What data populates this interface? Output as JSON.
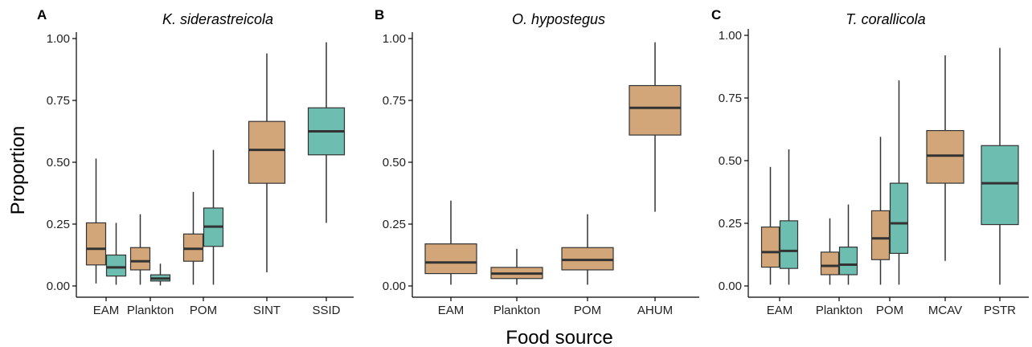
{
  "colors": {
    "orange": "#d2a679",
    "teal": "#6dbdb0"
  },
  "axes": {
    "ylabel": "Proportion",
    "xlabel": "Food source"
  },
  "chart_data": [
    {
      "type": "box",
      "letter": "A",
      "title": "K. siderastreicola",
      "ylim": [
        0,
        1.0
      ],
      "yticks": [
        "0.00",
        "0.25",
        "0.50",
        "0.75",
        "1.00"
      ],
      "categories": [
        "EAM",
        "Plankton",
        "POM",
        "SINT",
        "SSID"
      ],
      "boxes": [
        {
          "cat": 0,
          "color": "orange",
          "min": 0.01,
          "q1": 0.085,
          "median": 0.15,
          "q3": 0.255,
          "max": 0.515
        },
        {
          "cat": 0,
          "color": "teal",
          "min": 0.005,
          "q1": 0.04,
          "median": 0.075,
          "q3": 0.125,
          "max": 0.255
        },
        {
          "cat": 1,
          "color": "orange",
          "min": 0.005,
          "q1": 0.065,
          "median": 0.1,
          "q3": 0.155,
          "max": 0.29
        },
        {
          "cat": 1,
          "color": "teal",
          "min": 0.002,
          "q1": 0.02,
          "median": 0.03,
          "q3": 0.045,
          "max": 0.09
        },
        {
          "cat": 2,
          "color": "orange",
          "min": 0.005,
          "q1": 0.1,
          "median": 0.15,
          "q3": 0.21,
          "max": 0.38
        },
        {
          "cat": 2,
          "color": "teal",
          "min": 0.005,
          "q1": 0.16,
          "median": 0.24,
          "q3": 0.315,
          "max": 0.55
        },
        {
          "cat": 3,
          "color": "orange",
          "min": 0.055,
          "q1": 0.415,
          "median": 0.55,
          "q3": 0.665,
          "max": 0.94
        },
        {
          "cat": 4,
          "color": "teal",
          "min": 0.255,
          "q1": 0.53,
          "median": 0.625,
          "q3": 0.72,
          "max": 0.985
        }
      ]
    },
    {
      "type": "box",
      "letter": "B",
      "title": "O. hypostegus",
      "ylim": [
        0,
        1.0
      ],
      "yticks": [
        "0.00",
        "0.25",
        "0.50",
        "0.75",
        "1.00"
      ],
      "categories": [
        "EAM",
        "Plankton",
        "POM",
        "AHUM"
      ],
      "boxes": [
        {
          "cat": 0,
          "color": "orange",
          "min": 0.005,
          "q1": 0.05,
          "median": 0.095,
          "q3": 0.17,
          "max": 0.345
        },
        {
          "cat": 1,
          "color": "orange",
          "min": 0.005,
          "q1": 0.03,
          "median": 0.05,
          "q3": 0.075,
          "max": 0.15
        },
        {
          "cat": 2,
          "color": "orange",
          "min": 0.005,
          "q1": 0.065,
          "median": 0.105,
          "q3": 0.155,
          "max": 0.29
        },
        {
          "cat": 3,
          "color": "orange",
          "min": 0.3,
          "q1": 0.61,
          "median": 0.72,
          "q3": 0.81,
          "max": 0.985
        }
      ]
    },
    {
      "type": "box",
      "letter": "C",
      "title": "T. corallicola",
      "ylim": [
        0,
        1.0
      ],
      "yticks": [
        "0.00",
        "0.25",
        "0.50",
        "0.75",
        "1.00"
      ],
      "categories": [
        "EAM",
        "Plankton",
        "POM",
        "MCAV",
        "PSTR"
      ],
      "boxes": [
        {
          "cat": 0,
          "color": "orange",
          "min": 0.005,
          "q1": 0.075,
          "median": 0.135,
          "q3": 0.235,
          "max": 0.475
        },
        {
          "cat": 0,
          "color": "teal",
          "min": 0.005,
          "q1": 0.07,
          "median": 0.14,
          "q3": 0.26,
          "max": 0.545
        },
        {
          "cat": 1,
          "color": "orange",
          "min": 0.005,
          "q1": 0.045,
          "median": 0.08,
          "q3": 0.135,
          "max": 0.27
        },
        {
          "cat": 1,
          "color": "teal",
          "min": 0.005,
          "q1": 0.045,
          "median": 0.085,
          "q3": 0.155,
          "max": 0.325
        },
        {
          "cat": 2,
          "color": "orange",
          "min": 0.005,
          "q1": 0.105,
          "median": 0.19,
          "q3": 0.3,
          "max": 0.595
        },
        {
          "cat": 2,
          "color": "teal",
          "min": 0.005,
          "q1": 0.13,
          "median": 0.25,
          "q3": 0.41,
          "max": 0.82
        },
        {
          "cat": 3,
          "color": "orange",
          "min": 0.1,
          "q1": 0.41,
          "median": 0.52,
          "q3": 0.62,
          "max": 0.92
        },
        {
          "cat": 4,
          "color": "teal",
          "min": 0.005,
          "q1": 0.245,
          "median": 0.41,
          "q3": 0.56,
          "max": 0.95
        }
      ]
    }
  ]
}
